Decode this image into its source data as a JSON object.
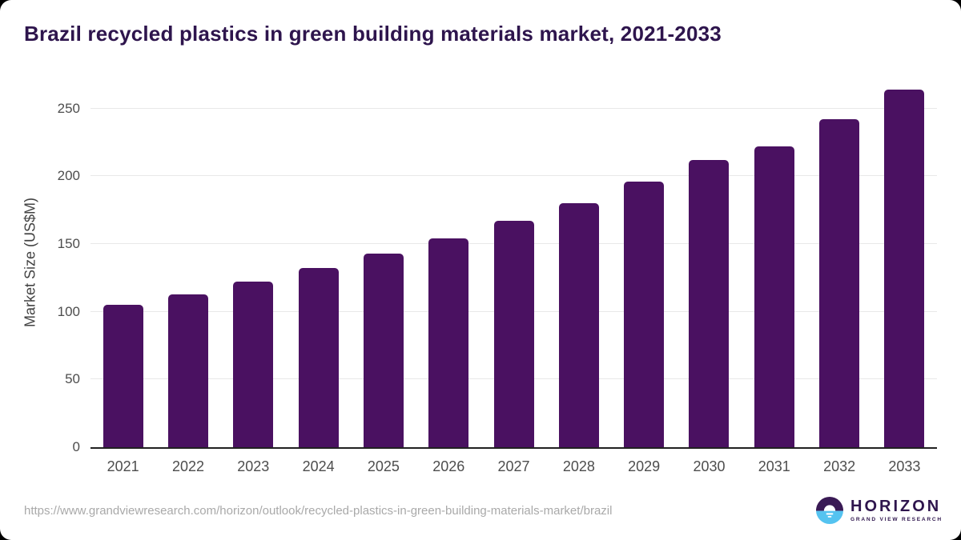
{
  "title": "Brazil recycled plastics in green building materials market, 2021-2033",
  "chart_data": {
    "type": "bar",
    "title": "Brazil recycled plastics in green building materials market, 2021-2033",
    "categories": [
      "2021",
      "2022",
      "2023",
      "2024",
      "2025",
      "2026",
      "2027",
      "2028",
      "2029",
      "2030",
      "2031",
      "2032",
      "2033"
    ],
    "values": [
      105,
      113,
      122,
      132,
      143,
      154,
      167,
      180,
      196,
      212,
      222,
      242,
      264
    ],
    "xlabel": "",
    "ylabel": "Market Size (US$M)",
    "ylim": [
      0,
      250
    ],
    "yticks": [
      0,
      50,
      100,
      150,
      200,
      250
    ],
    "grid": "horizontal",
    "legend": "none",
    "bar_color": "#4a1161"
  },
  "footer": {
    "source_url": "https://www.grandviewresearch.com/horizon/outlook/recycled-plastics-in-green-building-materials-market/brazil",
    "logo": {
      "name": "HORIZON",
      "subtitle": "GRAND VIEW RESEARCH"
    }
  },
  "colors": {
    "bar": "#4a1161",
    "title_text": "#2e154d",
    "axis_text": "#4d4d4d",
    "gridline": "#e8e8e8",
    "axis_line": "#212121",
    "url_text": "#a9a9a9",
    "logo_purple": "#3a1a55",
    "logo_blue": "#55c3f0"
  }
}
